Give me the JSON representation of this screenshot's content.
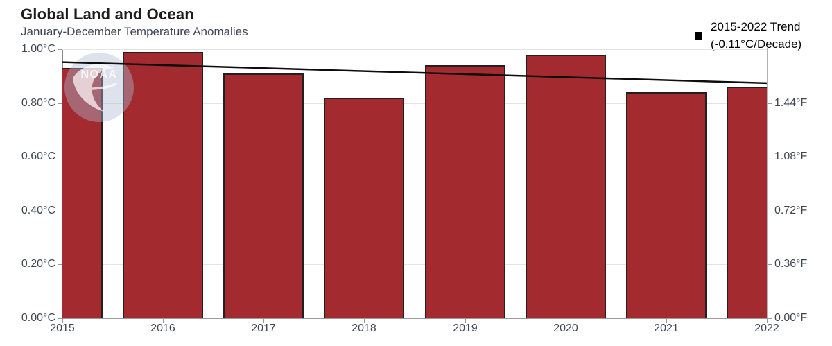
{
  "header": {
    "title": "Global Land and Ocean",
    "subtitle": "January-December Temperature Anomalies"
  },
  "legend": {
    "line1": "2015-2022 Trend",
    "line2": "(-0.11°C/Decade)",
    "marker_color": "#000000"
  },
  "watermark": {
    "text": "NOAA"
  },
  "chart_data": {
    "type": "bar",
    "title": "Global Land and Ocean",
    "subtitle": "January-December Temperature Anomalies",
    "categories": [
      "2015",
      "2016",
      "2017",
      "2018",
      "2019",
      "2020",
      "2021",
      "2022"
    ],
    "values_c": [
      0.93,
      0.99,
      0.91,
      0.82,
      0.94,
      0.98,
      0.84,
      0.86
    ],
    "bar_color": "#A32A2F",
    "bar_border_color": "#231F20",
    "grid": true,
    "legend_position": "top-right",
    "trend": {
      "label": "2015-2022 Trend (-0.11°C/Decade)",
      "rate_c_per_decade": -0.11,
      "start_c": 0.952,
      "end_c": 0.874,
      "color": "#0d0d0d"
    },
    "y_axis_left": {
      "unit": "°C",
      "range_c": [
        0.0,
        1.0
      ],
      "tick_labels": [
        "1.00°C",
        "0.80°C",
        "0.60°C",
        "0.40°C",
        "0.20°C",
        "0.00°C"
      ],
      "tick_values_c": [
        1.0,
        0.8,
        0.6,
        0.4,
        0.2,
        0.0
      ]
    },
    "y_axis_right": {
      "unit": "°F",
      "tick_labels": [
        "1.44°F",
        "1.08°F",
        "0.72°F",
        "0.36°F",
        "0.00°F"
      ],
      "tick_values_c": [
        0.8,
        0.6,
        0.4,
        0.2,
        0.0
      ]
    },
    "x_axis": {
      "tick_labels": [
        "2015",
        "2016",
        "2017",
        "2018",
        "2019",
        "2020",
        "2021",
        "2022"
      ]
    }
  }
}
